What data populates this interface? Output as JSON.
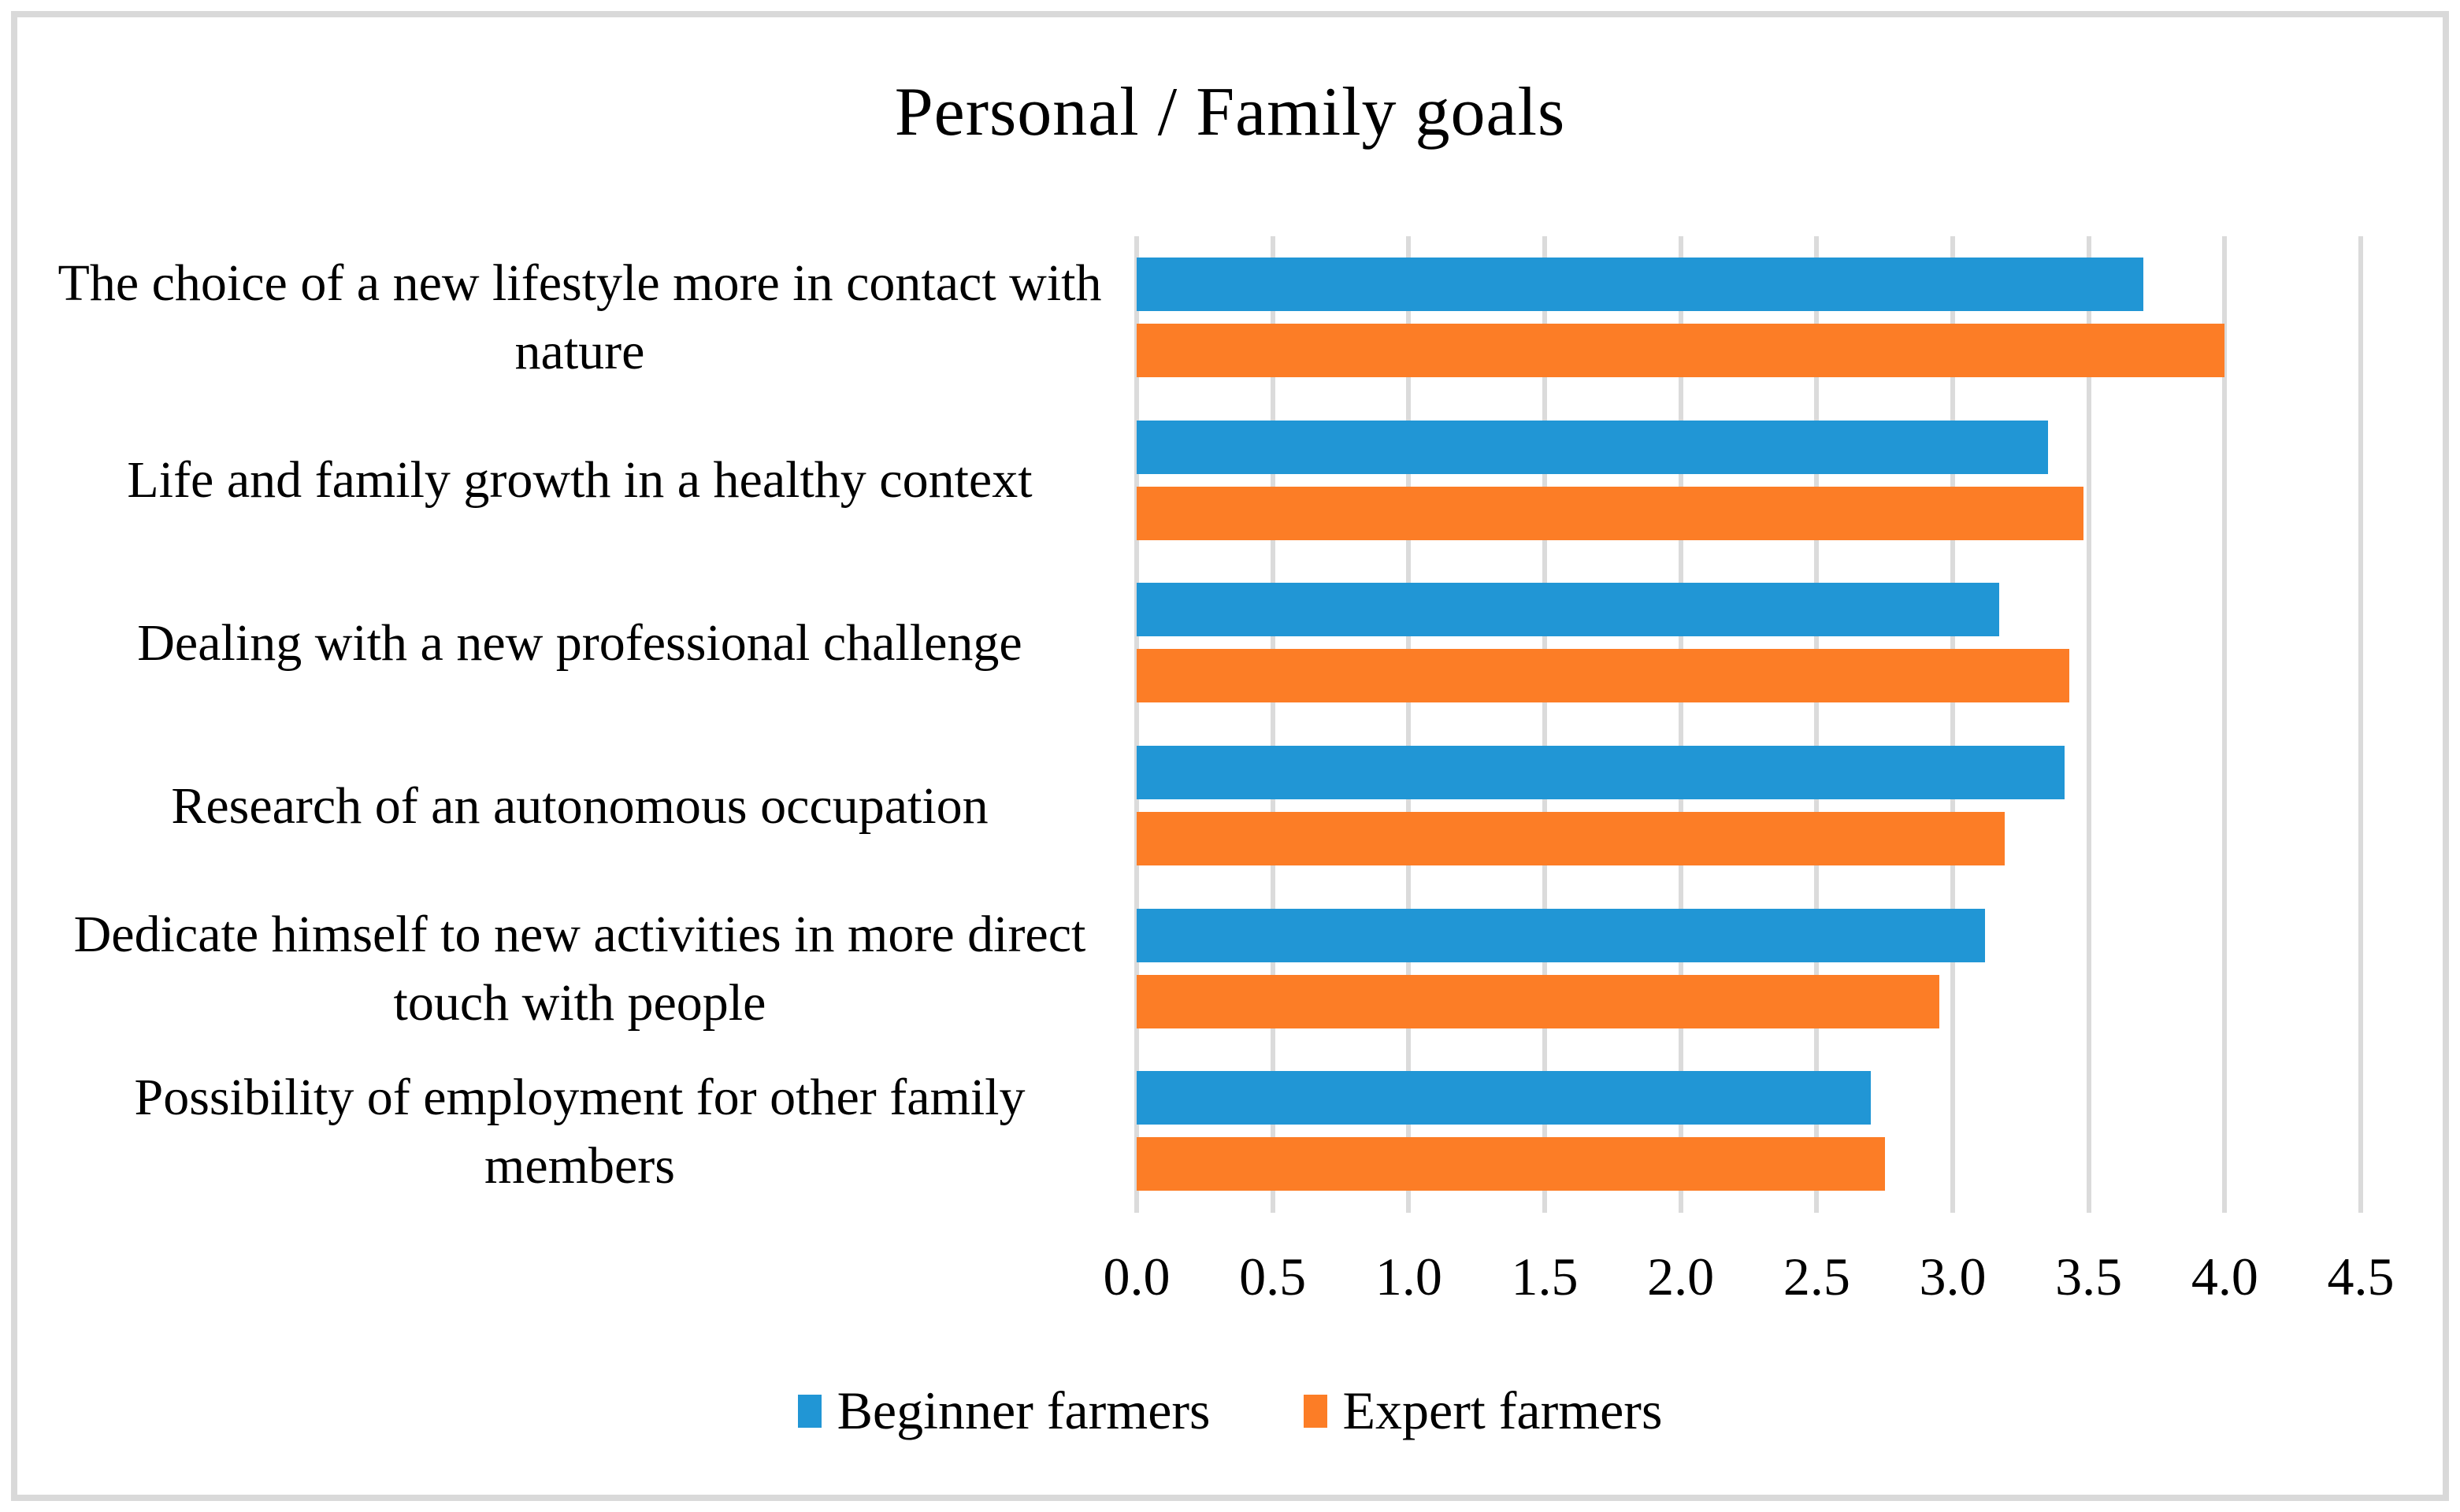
{
  "figure": {
    "background": "#FFFFFF",
    "border_color": "#D9D9D9"
  },
  "chart_data": {
    "type": "bar",
    "orientation": "horizontal",
    "title": "Personal / Family goals",
    "categories": [
      "The choice of a new lifestyle more in contact with nature",
      "Life and family growth in a healthy context",
      "Dealing with a new professional challenge",
      "Research of an autonomous occupation",
      "Dedicate himself to new activities in more direct touch with people",
      "Possibility of employment for other family members"
    ],
    "series": [
      {
        "name": "Beginner farmers",
        "color": "#2196D5",
        "values": [
          3.7,
          3.35,
          3.17,
          3.41,
          3.12,
          2.7
        ]
      },
      {
        "name": "Expert farmers",
        "color": "#FC7D26",
        "values": [
          4.0,
          3.48,
          3.43,
          3.19,
          2.95,
          2.75
        ]
      }
    ],
    "xlim": [
      0,
      4.5
    ],
    "x_tick_step": 0.5,
    "x_tick_labels": [
      "0.0",
      "0.5",
      "1.0",
      "1.5",
      "2.0",
      "2.5",
      "3.0",
      "3.5",
      "4.0",
      "4.5"
    ],
    "grid": true,
    "gridline_color": "#DBDBDB",
    "legend_position": "bottom"
  }
}
